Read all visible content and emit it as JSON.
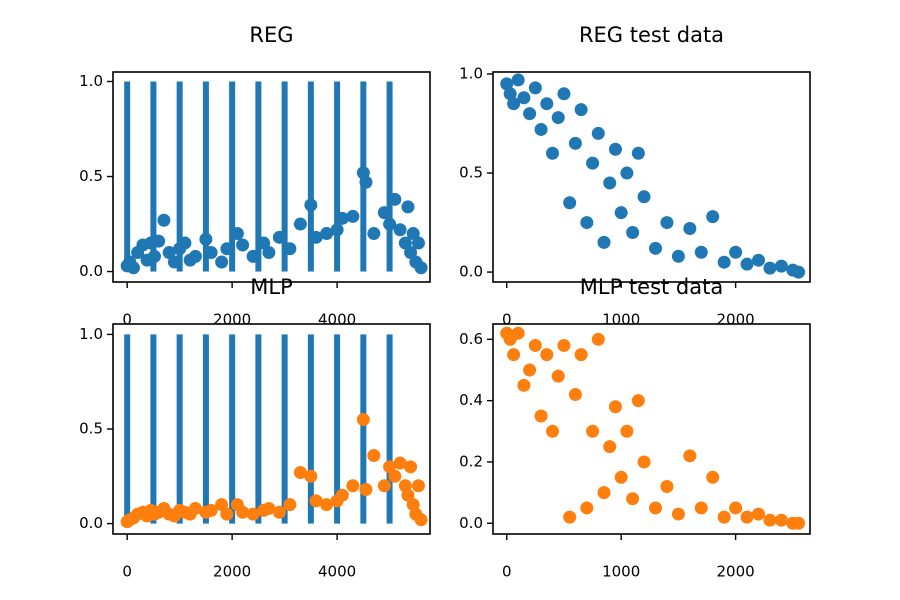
{
  "chart_data": [
    {
      "type": "scatter",
      "title": "REG",
      "xlim": [
        -270,
        5770
      ],
      "ylim": [
        -0.055,
        1.05
      ],
      "xticks": [
        0,
        2000,
        4000
      ],
      "yticks": [
        {
          "value": 0,
          "label": "0.0"
        },
        0.5,
        {
          "value": 1,
          "label": "1.0"
        }
      ],
      "series": [
        {
          "type": "bar",
          "color": "#1f77b4",
          "x": [
            0,
            500,
            1000,
            1500,
            2000,
            2500,
            3000,
            3500,
            4000,
            4500,
            5000
          ],
          "values": [
            1,
            1,
            1,
            1,
            1,
            1,
            1,
            1,
            1,
            1,
            1
          ]
        },
        {
          "type": "scatter",
          "color": "#1f77b4",
          "x": [
            0,
            50,
            120,
            200,
            300,
            380,
            450,
            520,
            600,
            700,
            800,
            900,
            1000,
            1100,
            1200,
            1300,
            1500,
            1600,
            1800,
            1900,
            2100,
            2200,
            2400,
            2600,
            2700,
            2900,
            3100,
            3300,
            3500,
            3600,
            3800,
            4000,
            4100,
            4300,
            4500,
            4550,
            4700,
            4900,
            5000,
            5100,
            5200,
            5300,
            5350,
            5400,
            5450,
            5500,
            5550,
            5600
          ],
          "values": [
            0.03,
            0.05,
            0.02,
            0.1,
            0.14,
            0.06,
            0.15,
            0.08,
            0.16,
            0.27,
            0.1,
            0.05,
            0.12,
            0.15,
            0.06,
            0.08,
            0.17,
            0.1,
            0.05,
            0.12,
            0.2,
            0.14,
            0.08,
            0.15,
            0.1,
            0.18,
            0.12,
            0.25,
            0.35,
            0.18,
            0.2,
            0.22,
            0.28,
            0.29,
            0.52,
            0.47,
            0.2,
            0.31,
            0.25,
            0.38,
            0.22,
            0.15,
            0.34,
            0.1,
            0.2,
            0.05,
            0.15,
            0.02
          ]
        }
      ]
    },
    {
      "type": "scatter",
      "title": "REG test data",
      "xlim": [
        -120,
        2650
      ],
      "ylim": [
        -0.05,
        1.01
      ],
      "xticks": [
        0,
        1000,
        2000
      ],
      "yticks": [
        {
          "value": 0,
          "label": "0.0"
        },
        0.5,
        {
          "value": 1,
          "label": "1.0"
        }
      ],
      "series": [
        {
          "type": "scatter",
          "color": "#1f77b4",
          "x": [
            0,
            30,
            60,
            100,
            150,
            200,
            250,
            300,
            350,
            400,
            450,
            500,
            550,
            600,
            650,
            700,
            750,
            800,
            850,
            900,
            950,
            1000,
            1050,
            1100,
            1150,
            1200,
            1300,
            1400,
            1500,
            1600,
            1700,
            1800,
            1900,
            2000,
            2100,
            2200,
            2300,
            2400,
            2500,
            2550
          ],
          "values": [
            0.95,
            0.9,
            0.85,
            0.97,
            0.88,
            0.8,
            0.93,
            0.72,
            0.85,
            0.6,
            0.78,
            0.9,
            0.35,
            0.65,
            0.82,
            0.25,
            0.55,
            0.7,
            0.15,
            0.45,
            0.62,
            0.3,
            0.5,
            0.2,
            0.6,
            0.38,
            0.12,
            0.25,
            0.08,
            0.22,
            0.1,
            0.28,
            0.05,
            0.1,
            0.04,
            0.06,
            0.02,
            0.03,
            0.01,
            0.0
          ]
        }
      ]
    },
    {
      "type": "scatter",
      "title": "MLP",
      "xlim": [
        -270,
        5770
      ],
      "ylim": [
        -0.055,
        1.055
      ],
      "xticks": [
        0,
        2000,
        4000
      ],
      "yticks": [
        {
          "value": 0,
          "label": "0.0"
        },
        0.5,
        {
          "value": 1,
          "label": "1.0"
        }
      ],
      "series": [
        {
          "type": "bar",
          "color": "#1f77b4",
          "x": [
            0,
            500,
            1000,
            1500,
            2000,
            2500,
            3000,
            3500,
            4000,
            4500,
            5000
          ],
          "values": [
            1,
            1,
            1,
            1,
            1,
            1,
            1,
            1,
            1,
            1,
            1
          ]
        },
        {
          "type": "scatter",
          "color": "#ff7f0e",
          "x": [
            0,
            50,
            120,
            200,
            300,
            380,
            450,
            520,
            600,
            700,
            800,
            900,
            1000,
            1100,
            1200,
            1300,
            1500,
            1600,
            1800,
            1900,
            2100,
            2200,
            2400,
            2600,
            2700,
            2900,
            3100,
            3300,
            3500,
            3600,
            3800,
            4000,
            4100,
            4300,
            4500,
            4550,
            4700,
            4900,
            5000,
            5100,
            5200,
            5300,
            5350,
            5400,
            5450,
            5500,
            5550,
            5600
          ],
          "values": [
            0.01,
            0.02,
            0.03,
            0.05,
            0.06,
            0.04,
            0.07,
            0.05,
            0.06,
            0.08,
            0.05,
            0.04,
            0.07,
            0.06,
            0.05,
            0.08,
            0.06,
            0.07,
            0.1,
            0.05,
            0.1,
            0.06,
            0.05,
            0.07,
            0.08,
            0.06,
            0.1,
            0.27,
            0.25,
            0.12,
            0.1,
            0.12,
            0.15,
            0.2,
            0.55,
            0.18,
            0.36,
            0.2,
            0.3,
            0.25,
            0.32,
            0.2,
            0.15,
            0.3,
            0.1,
            0.05,
            0.2,
            0.02
          ]
        }
      ]
    },
    {
      "type": "scatter",
      "title": "MLP test data",
      "xlim": [
        -120,
        2650
      ],
      "ylim": [
        -0.035,
        0.65
      ],
      "xticks": [
        0,
        1000,
        2000
      ],
      "yticks": [
        {
          "value": 0,
          "label": "0.0"
        },
        0.2,
        0.4,
        0.6
      ],
      "series": [
        {
          "type": "scatter",
          "color": "#ff7f0e",
          "x": [
            0,
            30,
            60,
            100,
            150,
            200,
            250,
            300,
            350,
            400,
            450,
            500,
            550,
            600,
            650,
            700,
            750,
            800,
            850,
            900,
            950,
            1000,
            1050,
            1100,
            1150,
            1200,
            1300,
            1400,
            1500,
            1600,
            1700,
            1800,
            1900,
            2000,
            2100,
            2200,
            2300,
            2400,
            2500,
            2550
          ],
          "values": [
            0.62,
            0.6,
            0.55,
            0.62,
            0.45,
            0.5,
            0.58,
            0.35,
            0.55,
            0.3,
            0.48,
            0.58,
            0.02,
            0.42,
            0.55,
            0.05,
            0.3,
            0.6,
            0.1,
            0.25,
            0.38,
            0.15,
            0.3,
            0.08,
            0.4,
            0.2,
            0.05,
            0.12,
            0.03,
            0.22,
            0.05,
            0.15,
            0.02,
            0.05,
            0.02,
            0.03,
            0.01,
            0.01,
            0.0,
            0.0
          ]
        }
      ]
    }
  ]
}
